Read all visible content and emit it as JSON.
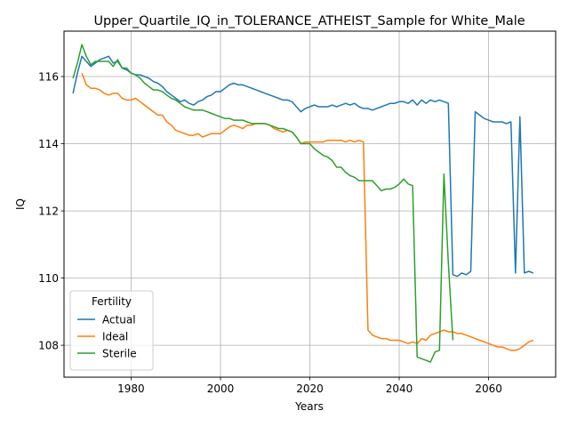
{
  "chart_data": {
    "type": "line",
    "title": "Upper_Quartile_IQ_in_TOLERANCE_ATHEIST_Sample for White_Male",
    "xlabel": "Years",
    "ylabel": "IQ",
    "xlim": [
      1965,
      2075
    ],
    "ylim": [
      107.05,
      117.35
    ],
    "xticks": [
      1980,
      2000,
      2020,
      2040,
      2060
    ],
    "yticks": [
      108,
      110,
      112,
      114,
      116
    ],
    "grid": true,
    "legend": {
      "title": "Fertility",
      "position": "lower-left"
    },
    "series": [
      {
        "name": "Actual",
        "color": "#1f77b4",
        "x": [
          1967,
          1968,
          1969,
          1970,
          1971,
          1972,
          1973,
          1974,
          1975,
          1976,
          1977,
          1978,
          1979,
          1980,
          1981,
          1982,
          1983,
          1984,
          1985,
          1986,
          1987,
          1988,
          1989,
          1990,
          1991,
          1992,
          1993,
          1994,
          1995,
          1996,
          1997,
          1998,
          1999,
          2000,
          2001,
          2002,
          2003,
          2004,
          2005,
          2006,
          2007,
          2008,
          2009,
          2010,
          2011,
          2012,
          2013,
          2014,
          2015,
          2016,
          2017,
          2018,
          2019,
          2020,
          2021,
          2022,
          2023,
          2024,
          2025,
          2026,
          2027,
          2028,
          2029,
          2030,
          2031,
          2032,
          2033,
          2034,
          2035,
          2036,
          2037,
          2038,
          2039,
          2040,
          2041,
          2042,
          2043,
          2044,
          2045,
          2046,
          2047,
          2048,
          2049,
          2050,
          2051,
          2052,
          2053,
          2054,
          2055,
          2056,
          2057,
          2058,
          2059,
          2060,
          2061,
          2062,
          2063,
          2064,
          2065,
          2066,
          2067,
          2068,
          2069,
          2070
        ],
        "y": [
          115.5,
          116.1,
          116.6,
          116.45,
          116.3,
          116.4,
          116.5,
          116.55,
          116.6,
          116.4,
          116.45,
          116.25,
          116.2,
          116.1,
          116.05,
          116.05,
          116.0,
          115.95,
          115.85,
          115.8,
          115.7,
          115.55,
          115.45,
          115.35,
          115.25,
          115.3,
          115.2,
          115.15,
          115.25,
          115.3,
          115.4,
          115.45,
          115.55,
          115.55,
          115.65,
          115.75,
          115.8,
          115.75,
          115.75,
          115.7,
          115.65,
          115.6,
          115.55,
          115.5,
          115.45,
          115.4,
          115.35,
          115.3,
          115.3,
          115.25,
          115.1,
          114.95,
          115.05,
          115.1,
          115.15,
          115.1,
          115.1,
          115.1,
          115.15,
          115.1,
          115.15,
          115.2,
          115.15,
          115.2,
          115.1,
          115.05,
          115.05,
          115.0,
          115.05,
          115.1,
          115.15,
          115.2,
          115.2,
          115.25,
          115.25,
          115.2,
          115.3,
          115.15,
          115.3,
          115.2,
          115.3,
          115.25,
          115.3,
          115.25,
          115.2,
          110.1,
          110.05,
          110.15,
          110.1,
          110.2,
          114.95,
          114.85,
          114.75,
          114.7,
          114.65,
          114.65,
          114.65,
          114.6,
          114.65,
          110.15,
          114.8,
          110.15,
          110.2,
          110.15
        ]
      },
      {
        "name": "Ideal",
        "color": "#ff7f0e",
        "x": [
          1969,
          1970,
          1971,
          1972,
          1973,
          1974,
          1975,
          1976,
          1977,
          1978,
          1979,
          1980,
          1981,
          1982,
          1983,
          1984,
          1985,
          1986,
          1987,
          1988,
          1989,
          1990,
          1991,
          1992,
          1993,
          1994,
          1995,
          1996,
          1997,
          1998,
          1999,
          2000,
          2001,
          2002,
          2003,
          2004,
          2005,
          2006,
          2007,
          2008,
          2009,
          2010,
          2011,
          2012,
          2013,
          2014,
          2015,
          2016,
          2017,
          2018,
          2019,
          2020,
          2021,
          2022,
          2023,
          2024,
          2025,
          2026,
          2027,
          2028,
          2029,
          2030,
          2031,
          2032,
          2033,
          2034,
          2035,
          2036,
          2037,
          2038,
          2039,
          2040,
          2041,
          2042,
          2043,
          2044,
          2045,
          2046,
          2047,
          2048,
          2049,
          2050,
          2051,
          2052,
          2053,
          2054,
          2055,
          2056,
          2057,
          2058,
          2059,
          2060,
          2061,
          2062,
          2063,
          2064,
          2065,
          2066,
          2067,
          2068,
          2069,
          2070
        ],
        "y": [
          116.1,
          115.75,
          115.65,
          115.65,
          115.6,
          115.5,
          115.45,
          115.5,
          115.5,
          115.35,
          115.3,
          115.3,
          115.35,
          115.25,
          115.15,
          115.05,
          114.95,
          114.85,
          114.85,
          114.65,
          114.55,
          114.4,
          114.35,
          114.3,
          114.25,
          114.25,
          114.3,
          114.2,
          114.25,
          114.3,
          114.3,
          114.3,
          114.4,
          114.5,
          114.55,
          114.5,
          114.45,
          114.55,
          114.55,
          114.6,
          114.6,
          114.6,
          114.55,
          114.45,
          114.4,
          114.35,
          114.4,
          114.35,
          114.2,
          114.0,
          114.05,
          114.05,
          114.05,
          114.05,
          114.05,
          114.1,
          114.1,
          114.1,
          114.1,
          114.05,
          114.1,
          114.05,
          114.1,
          114.05,
          108.45,
          108.3,
          108.25,
          108.2,
          108.2,
          108.15,
          108.15,
          108.15,
          108.1,
          108.05,
          108.1,
          108.05,
          108.2,
          108.15,
          108.3,
          108.35,
          108.4,
          108.45,
          108.4,
          108.4,
          108.35,
          108.35,
          108.3,
          108.25,
          108.2,
          108.15,
          108.1,
          108.05,
          108.0,
          107.95,
          107.95,
          107.9,
          107.85,
          107.85,
          107.9,
          108.0,
          108.1,
          108.15
        ]
      },
      {
        "name": "Sterile",
        "color": "#2ca02c",
        "x": [
          1967,
          1968,
          1969,
          1970,
          1971,
          1972,
          1973,
          1974,
          1975,
          1976,
          1977,
          1978,
          1979,
          1980,
          1981,
          1982,
          1983,
          1984,
          1985,
          1986,
          1987,
          1988,
          1989,
          1990,
          1991,
          1992,
          1993,
          1994,
          1995,
          1996,
          1997,
          1998,
          1999,
          2000,
          2001,
          2002,
          2003,
          2004,
          2005,
          2006,
          2007,
          2008,
          2009,
          2010,
          2011,
          2012,
          2013,
          2014,
          2015,
          2016,
          2017,
          2018,
          2019,
          2020,
          2021,
          2022,
          2023,
          2024,
          2025,
          2026,
          2027,
          2028,
          2029,
          2030,
          2031,
          2032,
          2033,
          2034,
          2035,
          2036,
          2037,
          2038,
          2039,
          2040,
          2041,
          2042,
          2043,
          2044,
          2045,
          2046,
          2047,
          2048,
          2049,
          2050,
          2051,
          2052
        ],
        "y": [
          115.95,
          116.4,
          116.95,
          116.6,
          116.35,
          116.45,
          116.45,
          116.45,
          116.45,
          116.3,
          116.5,
          116.25,
          116.25,
          116.1,
          116.05,
          115.95,
          115.8,
          115.7,
          115.6,
          115.6,
          115.55,
          115.45,
          115.35,
          115.3,
          115.2,
          115.1,
          115.05,
          115.0,
          115.0,
          115.0,
          114.95,
          114.9,
          114.85,
          114.8,
          114.75,
          114.75,
          114.7,
          114.7,
          114.7,
          114.65,
          114.6,
          114.6,
          114.6,
          114.6,
          114.55,
          114.5,
          114.45,
          114.45,
          114.4,
          114.35,
          114.2,
          114.0,
          114.0,
          114.0,
          113.85,
          113.75,
          113.65,
          113.6,
          113.5,
          113.3,
          113.3,
          113.15,
          113.05,
          113.0,
          112.9,
          112.9,
          112.9,
          112.9,
          112.75,
          112.6,
          112.65,
          112.65,
          112.7,
          112.8,
          112.95,
          112.8,
          112.75,
          107.65,
          107.6,
          107.55,
          107.5,
          107.8,
          107.85,
          113.1,
          110.45,
          108.15
        ]
      }
    ]
  }
}
